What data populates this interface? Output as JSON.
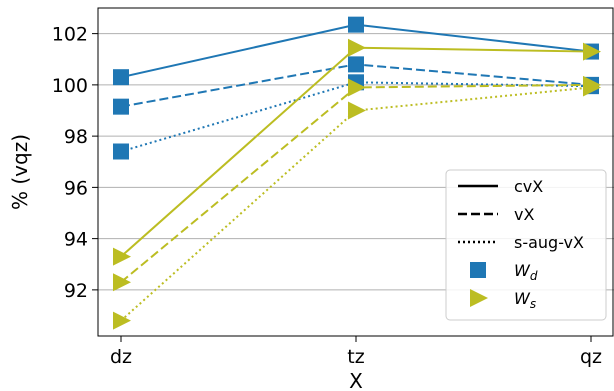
{
  "chart_data": {
    "type": "line",
    "title": "",
    "xlabel": "X",
    "ylabel": "% (vqz)",
    "categories": [
      "dz",
      "tz",
      "qz"
    ],
    "ylim": [
      90.2,
      103.0
    ],
    "yticks": [
      92,
      94,
      96,
      98,
      100,
      102
    ],
    "ytick_labels": [
      "92",
      "94",
      "96",
      "98",
      "100",
      "102"
    ],
    "grid": "horizontal",
    "legend_position": "lower-right",
    "colors": {
      "Wd": "#1f77b4",
      "Ws": "#bcbd22"
    },
    "series": [
      {
        "group": "Wd",
        "style": "cvX",
        "values": [
          100.3,
          102.35,
          101.3
        ]
      },
      {
        "group": "Wd",
        "style": "vX",
        "values": [
          99.15,
          100.8,
          100.0
        ]
      },
      {
        "group": "Wd",
        "style": "s-aug-vX",
        "values": [
          97.4,
          100.1,
          99.95
        ]
      },
      {
        "group": "Ws",
        "style": "cvX",
        "values": [
          93.3,
          101.45,
          101.3
        ]
      },
      {
        "group": "Ws",
        "style": "vX",
        "values": [
          92.3,
          99.9,
          100.0
        ]
      },
      {
        "group": "Ws",
        "style": "s-aug-vX",
        "values": [
          90.8,
          99.0,
          99.9
        ]
      }
    ],
    "legend": {
      "linestyles": [
        {
          "key": "cvX",
          "label": "cvX"
        },
        {
          "key": "vX",
          "label": "vX"
        },
        {
          "key": "s-aug-vX",
          "label": "s-aug-vX"
        }
      ],
      "markers": [
        {
          "key": "Wd",
          "symbol": "W",
          "sub": "d"
        },
        {
          "key": "Ws",
          "symbol": "W",
          "sub": "s"
        }
      ]
    }
  }
}
